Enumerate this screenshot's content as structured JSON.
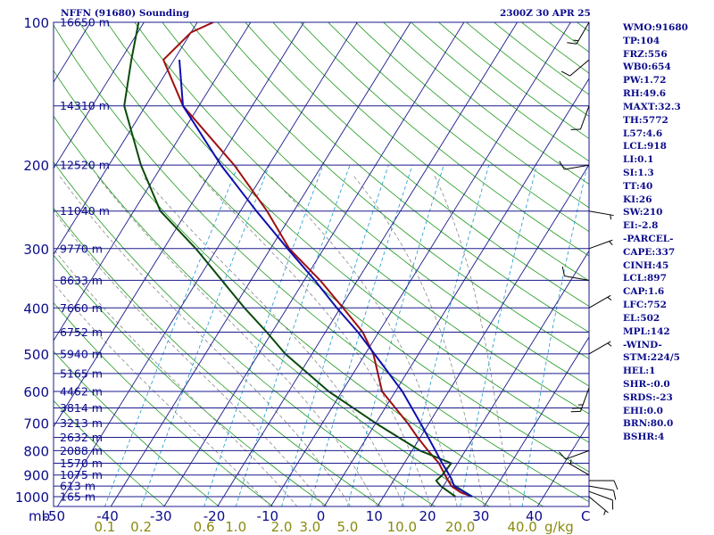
{
  "header": {
    "station": "NFFN (91680) Sounding",
    "time": "2300Z 30 APR 25"
  },
  "indices": [
    "WMO:91680",
    "TP:104",
    "FRZ:556",
    "WB0:654",
    "PW:1.72",
    "RH:49.6",
    "MAXT:32.3",
    "TH:5772",
    "L57:4.6",
    "LCL:918",
    "LI:0.1",
    "SI:1.3",
    "TT:40",
    "KI:26",
    "SW:210",
    "EI:-2.8",
    "-PARCEL-",
    "CAPE:337",
    "CINH:45",
    "LCL:897",
    "CAP:1.6",
    "LFC:752",
    "EL:502",
    "MPL:142",
    "-WIND-",
    "STM:224/5",
    "HEL:1",
    "SHR-:0.0",
    "SRDS:-23",
    "EHI:0.0",
    "BRN:80.0",
    "BSHR:4"
  ],
  "colors": {
    "isobar": "#1a1a8c",
    "skewed_isotherm": "#1a1a8c",
    "dry_adiabat": "#1f9a1f",
    "mixing_ratio": "#1a9acc",
    "moist_adiabat": "#777777",
    "temperature": "#a01010",
    "dewpoint": "#0a4a0a",
    "parcel": "#1010b0",
    "text": "#0b0b8c",
    "wind_barb": "#000000"
  },
  "chart_data": {
    "type": "skew-t",
    "x_unit": "C",
    "y_unit": "mb",
    "x_ticks": [
      -50,
      -40,
      -30,
      -20,
      -10,
      0,
      10,
      20,
      30,
      40
    ],
    "x_unit_label": "C",
    "y_unit_label": "mb",
    "pressure_ticks": [
      100,
      200,
      300,
      400,
      500,
      600,
      700,
      800,
      900,
      1000
    ],
    "pressure_range": [
      100,
      1000
    ],
    "isobar_heights": [
      {
        "p": 100,
        "label": "16650 m"
      },
      {
        "p": 150,
        "label": "14310 m"
      },
      {
        "p": 200,
        "label": "12520 m"
      },
      {
        "p": 250,
        "label": "11040 m"
      },
      {
        "p": 300,
        "label": "9770 m"
      },
      {
        "p": 350,
        "label": "8633 m"
      },
      {
        "p": 400,
        "label": "7660 m"
      },
      {
        "p": 450,
        "label": "6752 m"
      },
      {
        "p": 500,
        "label": "5940 m"
      },
      {
        "p": 550,
        "label": "5165 m"
      },
      {
        "p": 600,
        "label": "4462 m"
      },
      {
        "p": 650,
        "label": "3814 m"
      },
      {
        "p": 700,
        "label": "3213 m"
      },
      {
        "p": 750,
        "label": "2632 m"
      },
      {
        "p": 800,
        "label": "2088 m"
      },
      {
        "p": 850,
        "label": "1570 m"
      },
      {
        "p": 900,
        "label": "1075 m"
      },
      {
        "p": 950,
        "label": "613 m"
      },
      {
        "p": 1000,
        "label": "165 m"
      }
    ],
    "mixing_ratio_ticks": [
      "0.1",
      "0.2",
      "0.6",
      "1.0",
      "2.0",
      "3.0",
      "5.0",
      "10.0",
      "20.0",
      "40.0"
    ],
    "mixing_ratio_unit": "g/kg",
    "grid": true,
    "legend": "none",
    "series": [
      {
        "role": "temperature",
        "p": [
          1000,
          980,
          950,
          900,
          850,
          800,
          750,
          700,
          600,
          500,
          450,
          400,
          350,
          300,
          250,
          200,
          150,
          120,
          105,
          100
        ],
        "t": [
          26.6,
          24.0,
          21.5,
          19.0,
          16.5,
          13.0,
          9.5,
          6.0,
          -2.5,
          -8.5,
          -13.0,
          -19.5,
          -27.0,
          -36.5,
          -45.0,
          -56.5,
          -73.0,
          -82.0,
          -80.0,
          -77.0
        ]
      },
      {
        "role": "dewpoint",
        "p": [
          1000,
          950,
          925,
          900,
          850,
          800,
          700,
          600,
          500,
          450,
          400,
          300,
          250,
          200,
          150,
          120,
          100
        ],
        "t": [
          23.5,
          19.5,
          18.0,
          18.5,
          18.8,
          11.5,
          0.0,
          -12.5,
          -25.0,
          -31.0,
          -38.0,
          -54.0,
          -65.0,
          -74.0,
          -84.0,
          -88.0,
          -91.0
        ]
      },
      {
        "role": "parcel",
        "p": [
          1000,
          950,
          918,
          900,
          850,
          800,
          750,
          700,
          600,
          500,
          450,
          400,
          350,
          300,
          250,
          200,
          150,
          120
        ],
        "t": [
          26.6,
          22.0,
          20.7,
          19.8,
          17.1,
          14.4,
          11.5,
          8.4,
          1.3,
          -8.3,
          -13.9,
          -20.7,
          -28.0,
          -36.8,
          -47.0,
          -59.0,
          -73.0,
          -79.0
        ]
      }
    ],
    "winds": [
      {
        "p": 1000,
        "dir": 130,
        "spd": 5
      },
      {
        "p": 975,
        "dir": 110,
        "spd": 10
      },
      {
        "p": 950,
        "dir": 100,
        "spd": 10
      },
      {
        "p": 925,
        "dir": 90,
        "spd": 10
      },
      {
        "p": 900,
        "dir": 300,
        "spd": 5
      },
      {
        "p": 800,
        "dir": 250,
        "spd": 10
      },
      {
        "p": 590,
        "dir": 200,
        "spd": 25
      },
      {
        "p": 500,
        "dir": 60,
        "spd": 5
      },
      {
        "p": 400,
        "dir": 60,
        "spd": 5
      },
      {
        "p": 350,
        "dir": 280,
        "spd": 10
      },
      {
        "p": 300,
        "dir": 70,
        "spd": 5
      },
      {
        "p": 250,
        "dir": 100,
        "spd": 5
      },
      {
        "p": 200,
        "dir": 260,
        "spd": 10
      },
      {
        "p": 150,
        "dir": 200,
        "spd": 10
      },
      {
        "p": 120,
        "dir": 230,
        "spd": 10
      },
      {
        "p": 100,
        "dir": 210,
        "spd": 15
      }
    ]
  }
}
